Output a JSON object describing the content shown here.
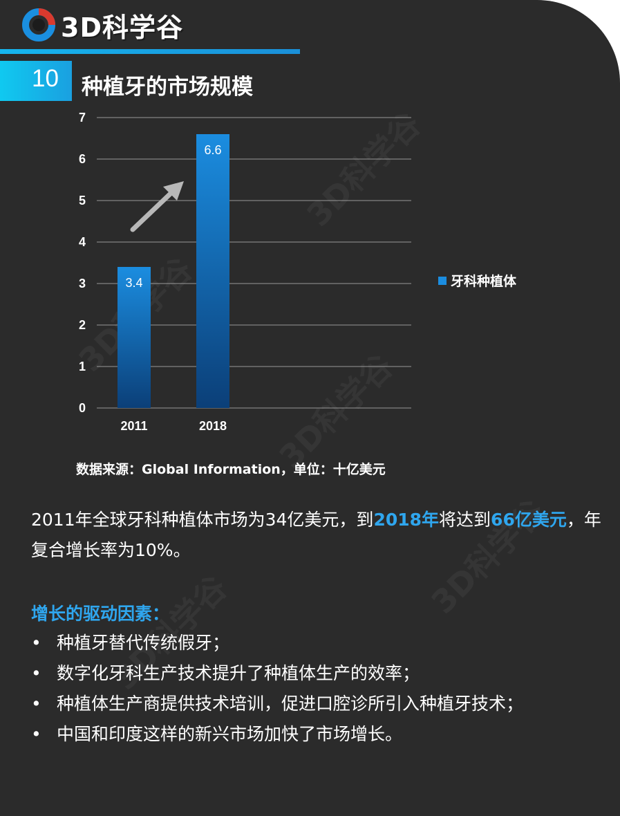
{
  "logo": {
    "text": "3D科学谷"
  },
  "watermark_text": "3D科学谷",
  "slide": {
    "number": "10",
    "title": "种植牙的市场规模"
  },
  "chart_data": {
    "type": "bar",
    "categories": [
      "2011",
      "2018"
    ],
    "series": [
      {
        "name": "牙科种植体",
        "values": [
          3.4,
          6.6
        ]
      }
    ],
    "data_labels": [
      "3.4",
      "6.6"
    ],
    "y_ticks": [
      "0",
      "1",
      "2",
      "3",
      "4",
      "5",
      "6",
      "7"
    ],
    "ylim": [
      0,
      7
    ],
    "grid": true,
    "legend_position": "right",
    "annotation": "upward-arrow"
  },
  "source_note": "数据来源：Global Information，单位：十亿美元",
  "summary": {
    "part1": "2011年全球牙科种植体市场为34亿美元，到",
    "highlight1": "2018年",
    "part2": "将达到",
    "highlight2": "66亿美元",
    "part3": "，年复合增长率为10%。"
  },
  "drivers": {
    "title": "增长的驱动因素：",
    "bullet": "•",
    "items": [
      "种植牙替代传统假牙；",
      "数字化牙科生产技术提升了种植体生产的效率；",
      "种植体生产商提供技术培训，促进口腔诊所引入种植牙技术；",
      "中国和印度这样的新兴市场加快了市场增长。"
    ]
  },
  "colors": {
    "accent": "#2fa6ee",
    "bar_top": "#1b8de0",
    "bar_bottom": "#0b3f78",
    "background": "#2b2b2b"
  }
}
